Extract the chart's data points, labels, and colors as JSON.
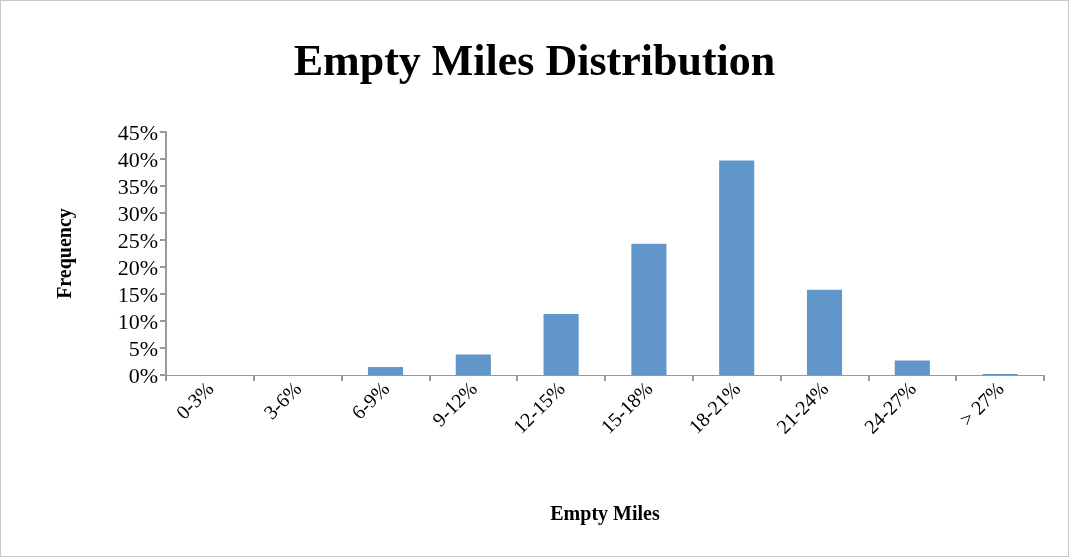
{
  "chart_data": {
    "type": "bar",
    "title": "Empty Miles Distribution",
    "xlabel": "Empty Miles",
    "ylabel": "Frequency",
    "categories": [
      "0-3%",
      "3-6%",
      "6-9%",
      "9-12%",
      "12-15%",
      "15-18%",
      "18-21%",
      "21-24%",
      "24-27%",
      "> 27%"
    ],
    "values": [
      0,
      0,
      1.5,
      3.8,
      11.3,
      24.3,
      39.7,
      15.8,
      2.7,
      0.2
    ],
    "color": "#6096c9",
    "ylim": [
      0,
      45
    ],
    "yticks": [
      {
        "value": 0,
        "label": "0%"
      },
      {
        "value": 5,
        "label": "5%"
      },
      {
        "value": 10,
        "label": "10%"
      },
      {
        "value": 15,
        "label": "15%"
      },
      {
        "value": 20,
        "label": "20%"
      },
      {
        "value": 25,
        "label": "25%"
      },
      {
        "value": 30,
        "label": "30%"
      },
      {
        "value": 35,
        "label": "35%"
      },
      {
        "value": 40,
        "label": "40%"
      },
      {
        "value": 45,
        "label": "45%"
      }
    ],
    "grid": false
  }
}
